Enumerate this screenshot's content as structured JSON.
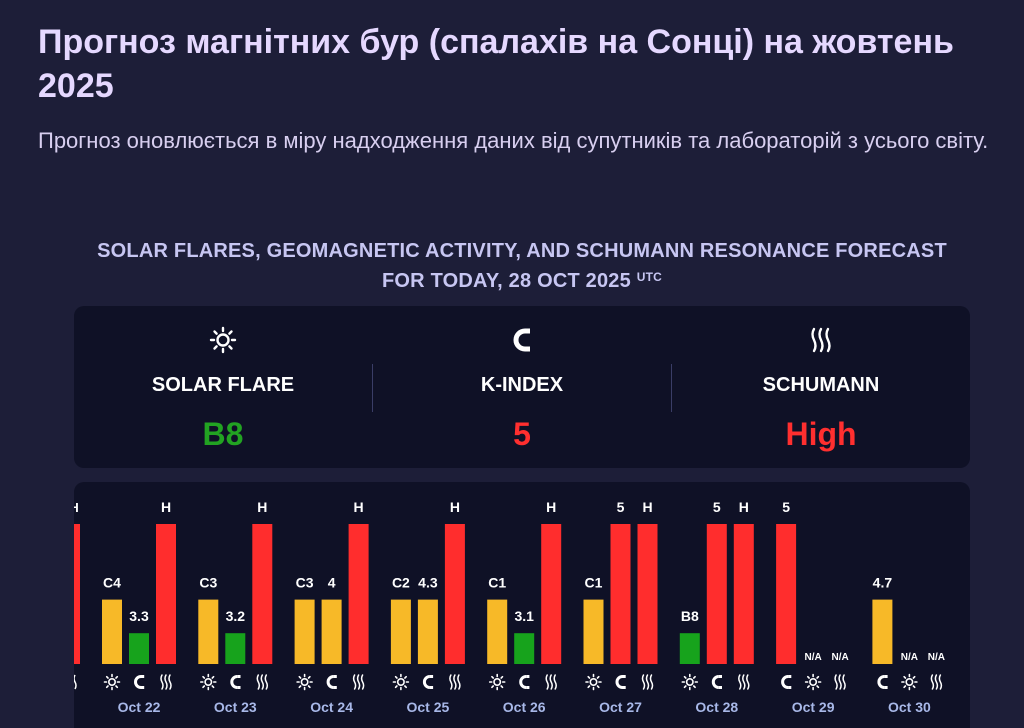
{
  "header": {
    "title": "Прогноз магнітних бур (спалахів на Сонці) на жовтень 2025",
    "subtitle": "Прогноз оновлюється в міру надходження даних від супутників та лабораторій з усього світу."
  },
  "headline": {
    "text": "SOLAR FLARES, GEOMAGNETIC ACTIVITY, AND SCHUMANN RESONANCE FORECAST FOR TODAY, 28 OCT 2025",
    "tz": "UTC"
  },
  "summary": {
    "solar_flare": {
      "label": "SOLAR FLARE",
      "value": "B8",
      "color": "#22a322",
      "icon": "sun-icon"
    },
    "k_index": {
      "label": "K-INDEX",
      "value": "5",
      "color": "#ff2f2f",
      "icon": "magnet-icon"
    },
    "schumann": {
      "label": "SCHUMANN",
      "value": "High",
      "color": "#ff2f2f",
      "icon": "waves-icon"
    }
  },
  "colors": {
    "yellow": "#f7b928",
    "green": "#17a31c",
    "red": "#ff2d2d",
    "bg": "#1d1e38",
    "panel": "#0f1126"
  },
  "chart_data": {
    "type": "bar",
    "series_order": [
      "solar_flare",
      "k_index",
      "schumann"
    ],
    "days": [
      {
        "date": "Oct 22",
        "solar_flare": {
          "label": "C4",
          "level": 0.46,
          "color": "yellow"
        },
        "k_index": {
          "label": "3.3",
          "level": 0.22,
          "color": "green"
        },
        "schumann": {
          "label": "H",
          "level": 1.0,
          "color": "red"
        }
      },
      {
        "date": "Oct 23",
        "solar_flare": {
          "label": "C3",
          "level": 0.46,
          "color": "yellow"
        },
        "k_index": {
          "label": "3.2",
          "level": 0.22,
          "color": "green"
        },
        "schumann": {
          "label": "H",
          "level": 1.0,
          "color": "red"
        }
      },
      {
        "date": "Oct 24",
        "solar_flare": {
          "label": "C3",
          "level": 0.46,
          "color": "yellow"
        },
        "k_index": {
          "label": "4",
          "level": 0.46,
          "color": "yellow"
        },
        "schumann": {
          "label": "H",
          "level": 1.0,
          "color": "red"
        }
      },
      {
        "date": "Oct 25",
        "solar_flare": {
          "label": "C2",
          "level": 0.46,
          "color": "yellow"
        },
        "k_index": {
          "label": "4.3",
          "level": 0.46,
          "color": "yellow"
        },
        "schumann": {
          "label": "H",
          "level": 1.0,
          "color": "red"
        }
      },
      {
        "date": "Oct 26",
        "solar_flare": {
          "label": "C1",
          "level": 0.46,
          "color": "yellow"
        },
        "k_index": {
          "label": "3.1",
          "level": 0.22,
          "color": "green"
        },
        "schumann": {
          "label": "H",
          "level": 1.0,
          "color": "red"
        }
      },
      {
        "date": "Oct 27",
        "solar_flare": {
          "label": "C1",
          "level": 0.46,
          "color": "yellow"
        },
        "k_index": {
          "label": "5",
          "level": 1.0,
          "color": "red"
        },
        "schumann": {
          "label": "H",
          "level": 1.0,
          "color": "red"
        }
      },
      {
        "date": "Oct 28",
        "solar_flare": {
          "label": "B8",
          "level": 0.22,
          "color": "green"
        },
        "k_index": {
          "label": "5",
          "level": 1.0,
          "color": "red"
        },
        "schumann": {
          "label": "H",
          "level": 1.0,
          "color": "red"
        }
      },
      {
        "date": "Oct 29",
        "k_index": {
          "label": "5",
          "level": 1.0,
          "color": "red"
        },
        "solar_flare": {
          "label": "N/A",
          "level": 0,
          "color": "none"
        },
        "schumann": {
          "label": "N/A",
          "level": 0,
          "color": "none"
        },
        "order": [
          "k_index",
          "solar_flare",
          "schumann"
        ]
      },
      {
        "date": "Oct 30",
        "k_index": {
          "label": "4.7",
          "level": 0.46,
          "color": "yellow"
        },
        "solar_flare": {
          "label": "N/A",
          "level": 0,
          "color": "none"
        },
        "schumann": {
          "label": "N/A",
          "level": 0,
          "color": "none"
        },
        "order": [
          "k_index",
          "solar_flare",
          "schumann"
        ]
      }
    ],
    "partial_left": {
      "label": "H",
      "color": "red"
    }
  }
}
